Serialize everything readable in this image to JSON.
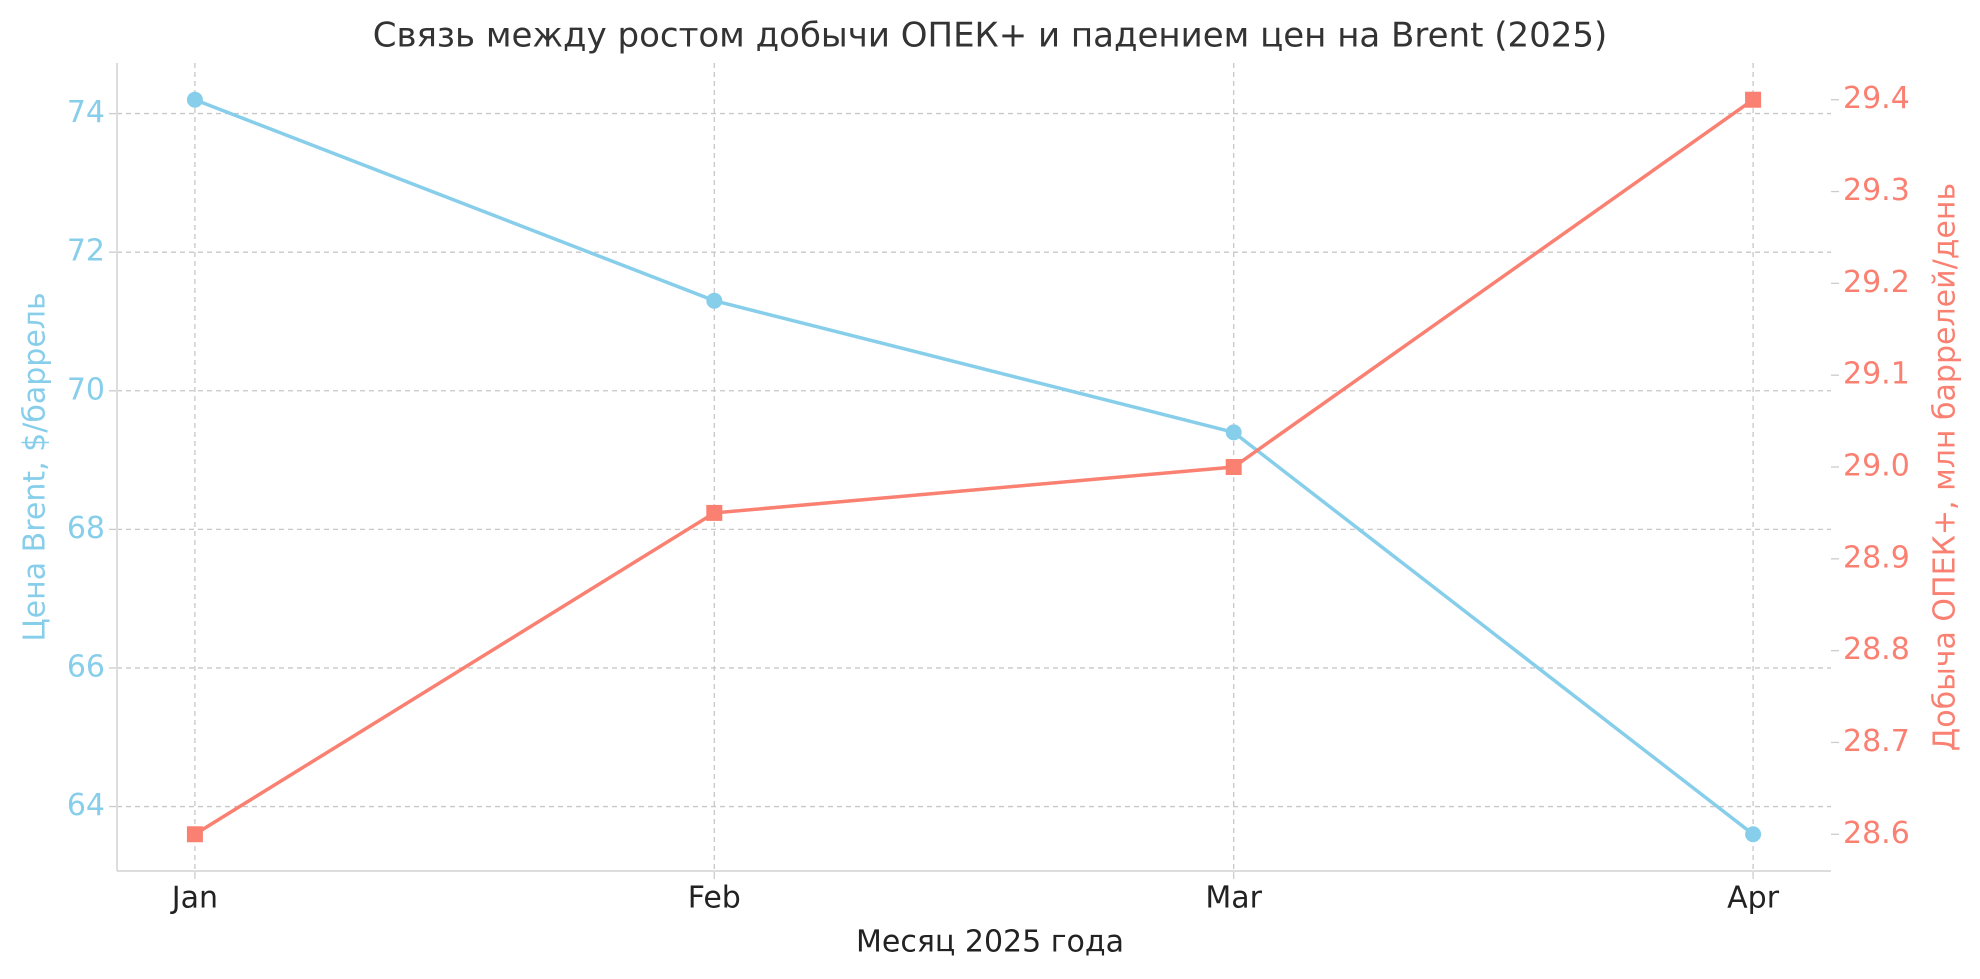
{
  "chart_data": {
    "type": "line",
    "title": "Связь между ростом добычи ОПЕК+ и падением цен на Brent (2025)",
    "x_label": "Месяц 2025 года",
    "y_label": "Цена Brent, $/баррель",
    "y2_label": "Добыча ОПЕК+, млн баррелей/день",
    "categories": [
      "Jan",
      "Feb",
      "Mar",
      "Apr"
    ],
    "series": [
      {
        "name": "Цена Brent",
        "color": "#87ceeb",
        "marker": "circle",
        "values": [
          74.2,
          71.3,
          69.4,
          63.6
        ]
      },
      {
        "name": "Добыча ОПЕК+",
        "color": "#fa8072",
        "marker": "square",
        "axis": "y2",
        "values": [
          28.6,
          28.95,
          29.0,
          29.4
        ]
      }
    ],
    "ylim": [
      63.07,
      74.73
    ],
    "yticks": [
      64,
      66,
      68,
      70,
      72,
      74
    ],
    "y2lim": [
      28.56,
      29.44
    ],
    "y2ticks": [
      28.6,
      28.7,
      28.8,
      28.9,
      {
        "value": 29.0,
        "label": "29.0"
      },
      29.1,
      29.2,
      29.3,
      29.4
    ],
    "grid": true
  }
}
